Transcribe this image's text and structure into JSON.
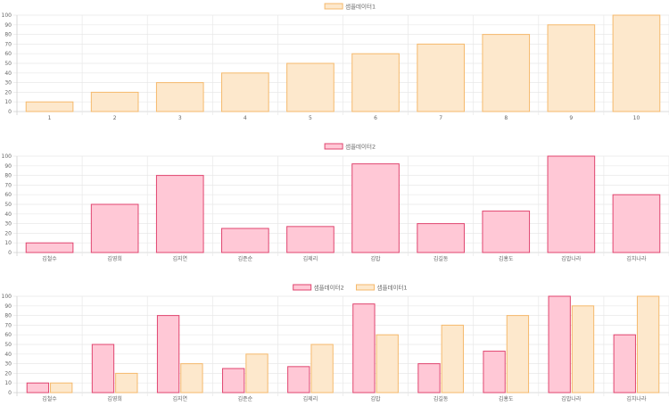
{
  "colors": {
    "series1_fill": "#fde8cc",
    "series1_stroke": "#f5b96c",
    "series2_fill": "#ffc8d6",
    "series2_stroke": "#e0456f"
  },
  "chart_data": [
    {
      "type": "bar",
      "categories": [
        "1",
        "2",
        "3",
        "4",
        "5",
        "6",
        "7",
        "8",
        "9",
        "10"
      ],
      "series": [
        {
          "name": "샘플데이터1",
          "values": [
            10,
            20,
            30,
            40,
            50,
            60,
            70,
            80,
            90,
            100
          ],
          "color_key": "series1"
        }
      ],
      "ylim": [
        0,
        100
      ],
      "yticks": [
        0,
        10,
        20,
        30,
        40,
        50,
        60,
        70,
        80,
        90,
        100
      ],
      "grid": true,
      "legend": "top-center"
    },
    {
      "type": "bar",
      "categories": [
        "김철수",
        "김영희",
        "김지연",
        "김준순",
        "김제리",
        "김밥",
        "김길동",
        "김홍도",
        "김밥나라",
        "김치나라"
      ],
      "series": [
        {
          "name": "샘플데이터2",
          "values": [
            10,
            50,
            80,
            25,
            27,
            92,
            30,
            43,
            100,
            60
          ],
          "color_key": "series2"
        }
      ],
      "ylim": [
        0,
        100
      ],
      "yticks": [
        0,
        10,
        20,
        30,
        40,
        50,
        60,
        70,
        80,
        90,
        100
      ],
      "grid": true,
      "legend": "top-center"
    },
    {
      "type": "bar",
      "categories": [
        "김철수",
        "김영희",
        "김지연",
        "김준순",
        "김제리",
        "김밥",
        "김길동",
        "김홍도",
        "김밥나라",
        "김치나라"
      ],
      "series": [
        {
          "name": "샘플데이터2",
          "values": [
            10,
            50,
            80,
            25,
            27,
            92,
            30,
            43,
            100,
            60
          ],
          "color_key": "series2"
        },
        {
          "name": "샘플데이터1",
          "values": [
            10,
            20,
            30,
            40,
            50,
            60,
            70,
            80,
            90,
            100
          ],
          "color_key": "series1"
        }
      ],
      "ylim": [
        0,
        100
      ],
      "yticks": [
        0,
        10,
        20,
        30,
        40,
        50,
        60,
        70,
        80,
        90,
        100
      ],
      "grid": true,
      "legend": "top-center"
    }
  ]
}
